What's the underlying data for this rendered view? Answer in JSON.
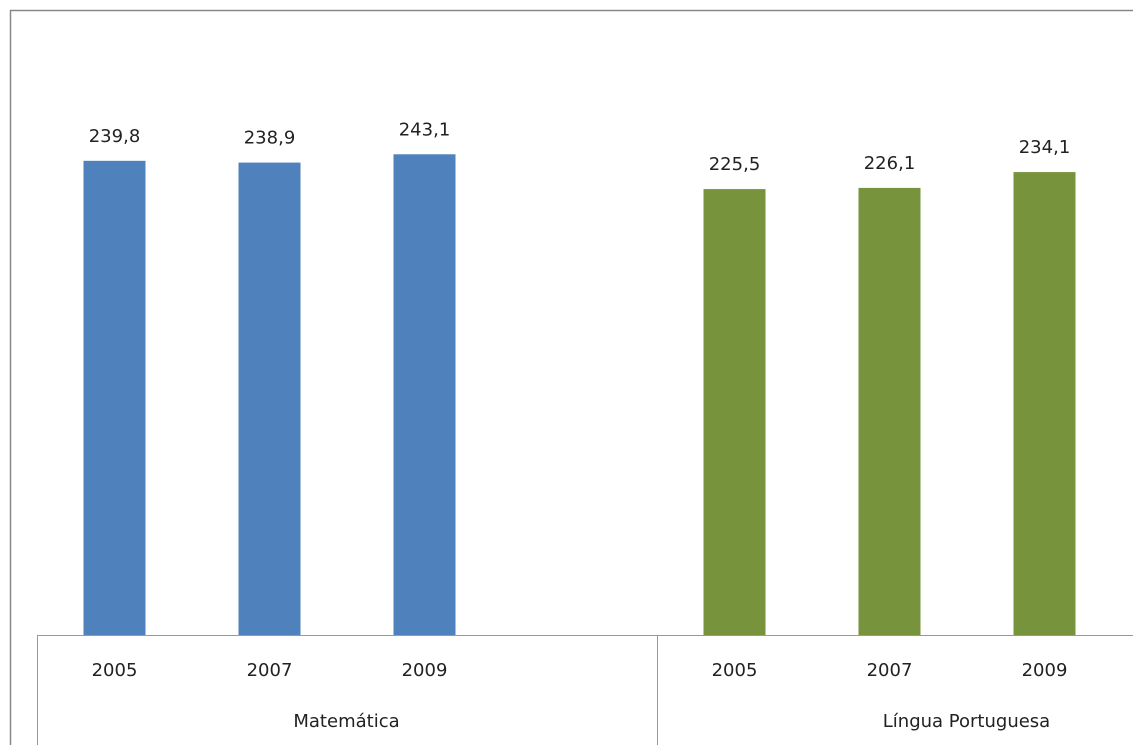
{
  "chart_data": {
    "type": "bar",
    "series": [
      {
        "name": "Matemática",
        "color": "#4f81bd",
        "categories": [
          "2005",
          "2007",
          "2009"
        ],
        "values": [
          239.8,
          238.9,
          243.1
        ],
        "value_labels": [
          "239,8",
          "238,9",
          "243,1"
        ]
      },
      {
        "name": "Língua Portuguesa",
        "color": "#77933c",
        "categories": [
          "2005",
          "2007",
          "2009"
        ],
        "values": [
          225.5,
          226.1,
          234.1
        ],
        "value_labels": [
          "225,5",
          "226,1",
          "234,1"
        ]
      }
    ],
    "ylim": [
      0,
      310
    ]
  }
}
